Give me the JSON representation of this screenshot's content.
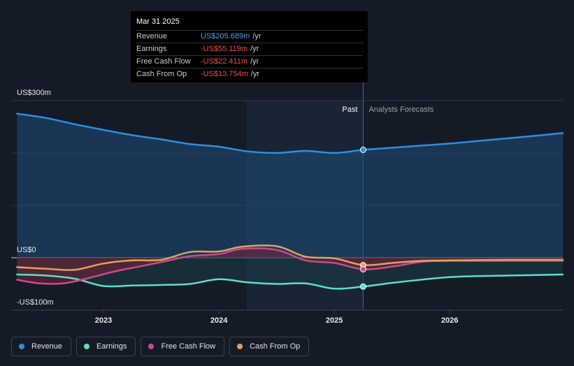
{
  "chart_data": {
    "type": "line",
    "title": "",
    "xlabel": "",
    "ylabel": "",
    "x_ticks": [
      "2023",
      "2024",
      "2025",
      "2026"
    ],
    "y_tick_labels": [
      {
        "value": 300,
        "label": "US$300m"
      },
      {
        "value": 0,
        "label": "US$0"
      },
      {
        "value": -100,
        "label": "-US$100m"
      }
    ],
    "ylim": [
      -100,
      300
    ],
    "xlim": [
      2022.2,
      2026.98
    ],
    "divider_x": 2025.25,
    "highlight_x": [
      2024.24,
      2025.25
    ],
    "region_labels": {
      "past": "Past",
      "forecast": "Analysts Forecasts"
    },
    "series": [
      {
        "name": "Revenue",
        "color": "#2b8fe5",
        "fill": true,
        "x": [
          2022.25,
          2022.5,
          2022.75,
          2023.0,
          2023.25,
          2023.5,
          2023.75,
          2024.0,
          2024.25,
          2024.5,
          2024.75,
          2025.0,
          2025.25,
          2025.5,
          2025.75,
          2026.0,
          2026.25,
          2026.5,
          2026.75,
          2026.98
        ],
        "y": [
          275,
          267,
          255,
          244,
          234,
          226,
          217,
          212,
          203,
          200,
          204,
          200,
          206,
          210,
          214,
          218,
          223,
          228,
          233,
          238
        ]
      },
      {
        "name": "Earnings",
        "color": "#58e0c8",
        "fill": true,
        "x": [
          2022.25,
          2022.5,
          2022.75,
          2023.0,
          2023.25,
          2023.5,
          2023.75,
          2024.0,
          2024.25,
          2024.5,
          2024.75,
          2025.0,
          2025.25,
          2025.5,
          2025.75,
          2026.0,
          2026.25,
          2026.5,
          2026.75,
          2026.98
        ],
        "y": [
          -32,
          -34,
          -40,
          -54,
          -53,
          -52,
          -50,
          -41,
          -47,
          -50,
          -49,
          -59,
          -55,
          -48,
          -42,
          -37,
          -35,
          -34,
          -33,
          -32
        ]
      },
      {
        "name": "Free Cash Flow",
        "color": "#c94b8d",
        "fill": true,
        "x": [
          2022.25,
          2022.45,
          2022.65,
          2022.85,
          2023.1,
          2023.35,
          2023.55,
          2023.75,
          2024.0,
          2024.2,
          2024.5,
          2024.75,
          2025.0,
          2025.25,
          2025.5,
          2025.75,
          2026.0,
          2026.5,
          2026.98
        ],
        "y": [
          -42,
          -49,
          -49,
          -40,
          -26,
          -15,
          -6,
          3,
          7,
          17,
          15,
          -5,
          -10,
          -22,
          -17,
          -8,
          -6,
          -6,
          -6
        ]
      },
      {
        "name": "Cash From Op",
        "color": "#e0a35c",
        "fill": false,
        "x": [
          2022.25,
          2022.5,
          2022.75,
          2023.0,
          2023.25,
          2023.5,
          2023.75,
          2024.0,
          2024.2,
          2024.5,
          2024.75,
          2025.0,
          2025.25,
          2025.5,
          2025.75,
          2026.0,
          2026.5,
          2026.98
        ],
        "y": [
          -18,
          -21,
          -23,
          -11,
          -5,
          -4,
          11,
          12,
          21,
          22,
          2,
          -1,
          -14,
          -10,
          -6,
          -5,
          -4,
          -4
        ]
      }
    ],
    "markers": [
      {
        "series": "Revenue",
        "x": 2025.25,
        "y": 206
      },
      {
        "series": "Cash From Op",
        "x": 2025.25,
        "y": -14
      },
      {
        "series": "Free Cash Flow",
        "x": 2025.25,
        "y": -22
      },
      {
        "series": "Earnings",
        "x": 2025.25,
        "y": -55
      }
    ]
  },
  "tooltip": {
    "date": "Mar 31 2025",
    "rows": [
      {
        "name": "Revenue",
        "value": "US$205.689m",
        "unit": "/yr",
        "negative": false
      },
      {
        "name": "Earnings",
        "value": "-US$55.119m",
        "unit": "/yr",
        "negative": true
      },
      {
        "name": "Free Cash Flow",
        "value": "-US$22.411m",
        "unit": "/yr",
        "negative": true
      },
      {
        "name": "Cash From Op",
        "value": "-US$13.754m",
        "unit": "/yr",
        "negative": true
      }
    ]
  },
  "legend": [
    {
      "label": "Revenue",
      "color": "#2b8fe5"
    },
    {
      "label": "Earnings",
      "color": "#58e0c8"
    },
    {
      "label": "Free Cash Flow",
      "color": "#c94b8d"
    },
    {
      "label": "Cash From Op",
      "color": "#e0a35c"
    }
  ]
}
